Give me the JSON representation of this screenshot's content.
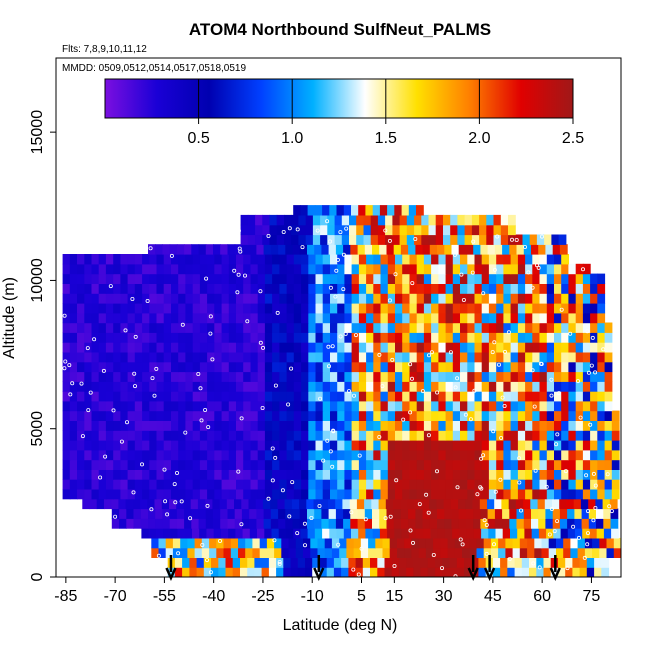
{
  "chart_data": {
    "type": "heatmap",
    "title": "ATOM4 Northbound SulfNeut_PALMS",
    "flights_note": "Flts: 7,8,9,10,11,12",
    "dates_note": "MMDD: 0509,0512,0514,0517,0518,0519",
    "xlabel": "Latitude (deg N)",
    "ylabel": "Altitude (m)",
    "xlim": [
      -88,
      84
    ],
    "ylim": [
      0,
      17500
    ],
    "x_ticks": [
      "-85",
      "-70",
      "-55",
      "-40",
      "-25",
      "-10",
      "5",
      "15",
      "30",
      "45",
      "60",
      "75"
    ],
    "y_ticks": [
      "0",
      "5000",
      "10000",
      "15000"
    ],
    "colorbar": {
      "min": 0,
      "max": 2.5,
      "tick_labels": [
        "0.5",
        "1.0",
        "1.5",
        "2.0",
        "2.5"
      ],
      "colors": [
        "#7b0fe0",
        "#1a00d6",
        "#0000b0",
        "#0040ff",
        "#00b0ff",
        "#ffffff",
        "#ffe000",
        "#ff8000",
        "#e00000",
        "#a01818"
      ]
    },
    "arrow_latitudes": [
      -53,
      -8,
      39,
      44,
      64
    ],
    "grid": false,
    "legend": "colorbar-top"
  }
}
